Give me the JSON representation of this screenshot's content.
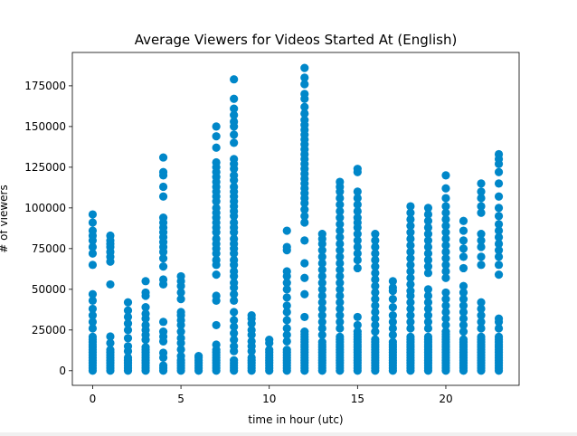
{
  "chart_data": {
    "type": "scatter",
    "title": "Average Viewers for Videos Started At (English)",
    "xlabel": "time in hour (utc)",
    "ylabel": "# of viewers",
    "xlim": [
      -1.15,
      24.15
    ],
    "ylim": [
      -9000,
      195500
    ],
    "xticks": [
      0,
      5,
      10,
      15,
      20
    ],
    "yticks": [
      0,
      25000,
      50000,
      75000,
      100000,
      125000,
      150000,
      175000
    ],
    "ytick_labels": [
      "0",
      "25000",
      "50000",
      "75000",
      "100000",
      "125000",
      "150000",
      "175000"
    ],
    "xtick_labels": [
      "0",
      "5",
      "10",
      "15",
      "20"
    ],
    "marker_color": "#0087c9",
    "grid": false,
    "legend": "none",
    "series": [
      {
        "hours": [
          {
            "x": 0,
            "dense_max": 22000,
            "upper": [
              26000,
              30000,
              34000,
              38000,
              43000,
              47000,
              65000,
              72000,
              76000,
              80000,
              83000,
              86000,
              91000,
              96000
            ]
          },
          {
            "x": 1,
            "dense_max": 13000,
            "upper": [
              17000,
              21000,
              53000,
              67000,
              70000,
              73000,
              76000,
              78000,
              80000,
              83000
            ]
          },
          {
            "x": 2,
            "dense_max": 9000,
            "upper": [
              12000,
              15000,
              20000,
              25000,
              29000,
              33000,
              37000,
              42000
            ]
          },
          {
            "x": 3,
            "dense_max": 15000,
            "upper": [
              19000,
              22000,
              25000,
              28000,
              32000,
              35000,
              39000,
              46000,
              48000,
              55000
            ]
          },
          {
            "x": 4,
            "dense_max": 4000,
            "upper": [
              8000,
              11000,
              18000,
              21000,
              24000,
              30000,
              53000,
              56000,
              64000,
              69000,
              73000,
              76000,
              79000,
              82000,
              85000,
              88000,
              91000,
              94000,
              107000,
              113000,
              120000,
              122000,
              131000
            ]
          },
          {
            "x": 5,
            "dense_max": 7000,
            "upper": [
              9000,
              13000,
              17000,
              20000,
              24000,
              28000,
              31000,
              34000,
              36000,
              44000,
              48000,
              52000,
              55000,
              58000
            ]
          },
          {
            "x": 6,
            "dense_max": 8000,
            "upper": [
              9000
            ]
          },
          {
            "x": 7,
            "dense_max": 14000,
            "upper": [
              16000,
              28000,
              43000,
              46000,
              59000,
              65000,
              68000,
              72000,
              75000,
              78000,
              81000,
              85000,
              88000,
              91000,
              94000,
              97000,
              100000,
              104000,
              107000,
              110000,
              113000,
              116000,
              119000,
              122000,
              125000,
              128000,
              137000,
              144000,
              150000
            ]
          },
          {
            "x": 8,
            "dense_max": 7000,
            "upper": [
              12000,
              15000,
              19000,
              23000,
              27000,
              31000,
              36000,
              43000,
              47000,
              51000,
              54000,
              58000,
              61000,
              65000,
              68000,
              72000,
              75000,
              78000,
              81000,
              85000,
              88000,
              91000,
              95000,
              98000,
              101000,
              104000,
              107000,
              110000,
              113000,
              117000,
              120000,
              124000,
              127000,
              130000,
              140000,
              145000,
              150000,
              153000,
              157000,
              161000,
              167000,
              179000
            ]
          },
          {
            "x": 9,
            "dense_max": 8000,
            "upper": [
              12000,
              15000,
              18000,
              22000,
              25000,
              29000,
              32000,
              34000
            ]
          },
          {
            "x": 10,
            "dense_max": 14000,
            "upper": [
              17000,
              19000
            ]
          },
          {
            "x": 11,
            "dense_max": 14000,
            "upper": [
              18000,
              22000,
              26000,
              31000,
              36000,
              40000,
              45000,
              50000,
              54000,
              58000,
              61000,
              74000,
              76000,
              86000
            ]
          },
          {
            "x": 12,
            "dense_max": 24000,
            "upper": [
              33000,
              47000,
              57000,
              66000,
              80000,
              91000,
              95000,
              99000,
              103000,
              106000,
              109000,
              112000,
              115000,
              118000,
              121000,
              124000,
              127000,
              130000,
              133000,
              136000,
              139000,
              142000,
              145000,
              148000,
              151000,
              154000,
              158000,
              162000,
              167000,
              170000,
              176000,
              180000,
              186000
            ]
          },
          {
            "x": 13,
            "dense_max": 18000,
            "upper": [
              22000,
              26000,
              30000,
              34000,
              38000,
              42000,
              46000,
              50000,
              54000,
              58000,
              62000,
              66000,
              70000,
              74000,
              78000,
              81000,
              84000
            ]
          },
          {
            "x": 14,
            "dense_max": 22000,
            "upper": [
              26000,
              30000,
              34000,
              38000,
              42000,
              46000,
              50000,
              54000,
              58000,
              62000,
              66000,
              70000,
              74000,
              78000,
              82000,
              86000,
              90000,
              94000,
              98000,
              102000,
              106000,
              110000,
              113000,
              116000
            ]
          },
          {
            "x": 15,
            "dense_max": 24000,
            "upper": [
              28000,
              33000,
              63000,
              68000,
              72000,
              76000,
              80000,
              84000,
              88000,
              91000,
              94000,
              98000,
              102000,
              106000,
              110000,
              122000,
              124000
            ]
          },
          {
            "x": 16,
            "dense_max": 20000,
            "upper": [
              24000,
              28000,
              32000,
              36000,
              40000,
              44000,
              48000,
              52000,
              56000,
              60000,
              64000,
              68000,
              72000,
              76000,
              80000,
              84000
            ]
          },
          {
            "x": 17,
            "dense_max": 18000,
            "upper": [
              22000,
              26000,
              30000,
              34000,
              39000,
              44000,
              49000,
              51000,
              55000
            ]
          },
          {
            "x": 18,
            "dense_max": 22000,
            "upper": [
              26000,
              30000,
              34000,
              38000,
              42000,
              46000,
              49000,
              53000,
              57000,
              61000,
              65000,
              69000,
              73000,
              77000,
              81000,
              85000,
              89000,
              93000,
              97000,
              101000
            ]
          },
          {
            "x": 19,
            "dense_max": 22000,
            "upper": [
              26000,
              30000,
              34000,
              38000,
              42000,
              46000,
              50000,
              60000,
              64000,
              68000,
              72000,
              76000,
              80000,
              84000,
              88000,
              92000,
              96000,
              100000
            ]
          },
          {
            "x": 20,
            "dense_max": 24000,
            "upper": [
              28000,
              32000,
              36000,
              40000,
              44000,
              48000,
              57000,
              61000,
              65000,
              69000,
              73000,
              77000,
              81000,
              85000,
              89000,
              93000,
              97000,
              101000,
              106000,
              112000,
              120000
            ]
          },
          {
            "x": 21,
            "dense_max": 20000,
            "upper": [
              24000,
              28000,
              32000,
              36000,
              40000,
              44000,
              48000,
              52000,
              63000,
              70000,
              75000,
              80000,
              86000,
              92000
            ]
          },
          {
            "x": 22,
            "dense_max": 22000,
            "upper": [
              26000,
              30000,
              34000,
              38000,
              42000,
              65000,
              70000,
              76000,
              80000,
              84000,
              97000,
              101000,
              106000,
              110000,
              115000
            ]
          },
          {
            "x": 23,
            "dense_max": 22000,
            "upper": [
              26000,
              30000,
              32000,
              59000,
              65000,
              70000,
              74000,
              78000,
              82000,
              86000,
              90000,
              95000,
              100000,
              107000,
              115000,
              122000,
              127000,
              130000,
              133000
            ]
          }
        ]
      }
    ]
  }
}
